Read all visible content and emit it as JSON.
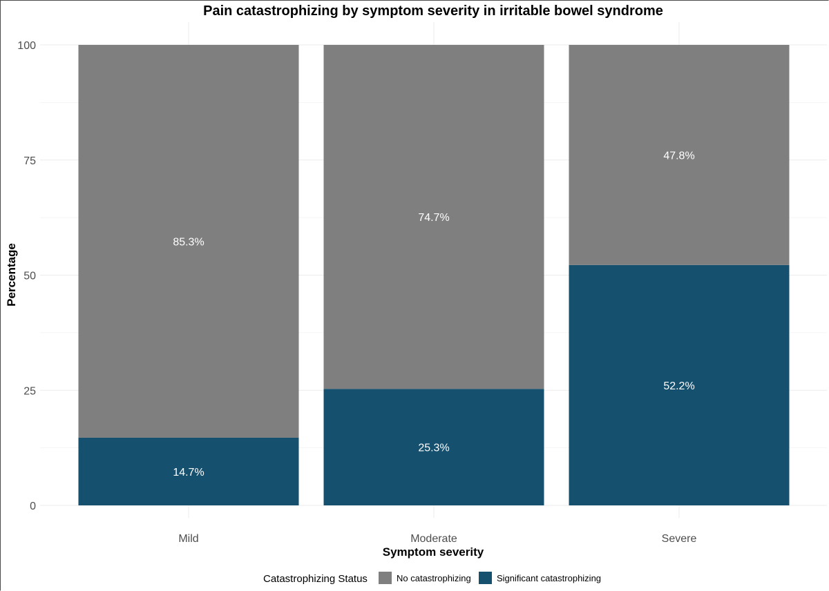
{
  "chart_data": {
    "type": "bar",
    "stacked": true,
    "title": "Pain catastrophizing by symptom severity in irritable bowel syndrome",
    "xlabel": "Symptom severity",
    "ylabel": "Percentage",
    "categories": [
      "Mild",
      "Moderate",
      "Severe"
    ],
    "ylim": [
      0,
      100
    ],
    "yticks": [
      0,
      25,
      50,
      75,
      100
    ],
    "grid": true,
    "legend": {
      "title": "Catastrophizing Status",
      "position": "bottom"
    },
    "series": [
      {
        "name": "Significant catastrophizing",
        "color": "#15506f",
        "values": [
          14.7,
          25.3,
          52.2
        ],
        "labels": [
          "14.7%",
          "25.3%",
          "52.2%"
        ]
      },
      {
        "name": "No catastrophizing",
        "color": "#7f7f7f",
        "values": [
          85.3,
          74.7,
          47.8
        ],
        "labels": [
          "85.3%",
          "74.7%",
          "47.8%"
        ]
      }
    ]
  }
}
